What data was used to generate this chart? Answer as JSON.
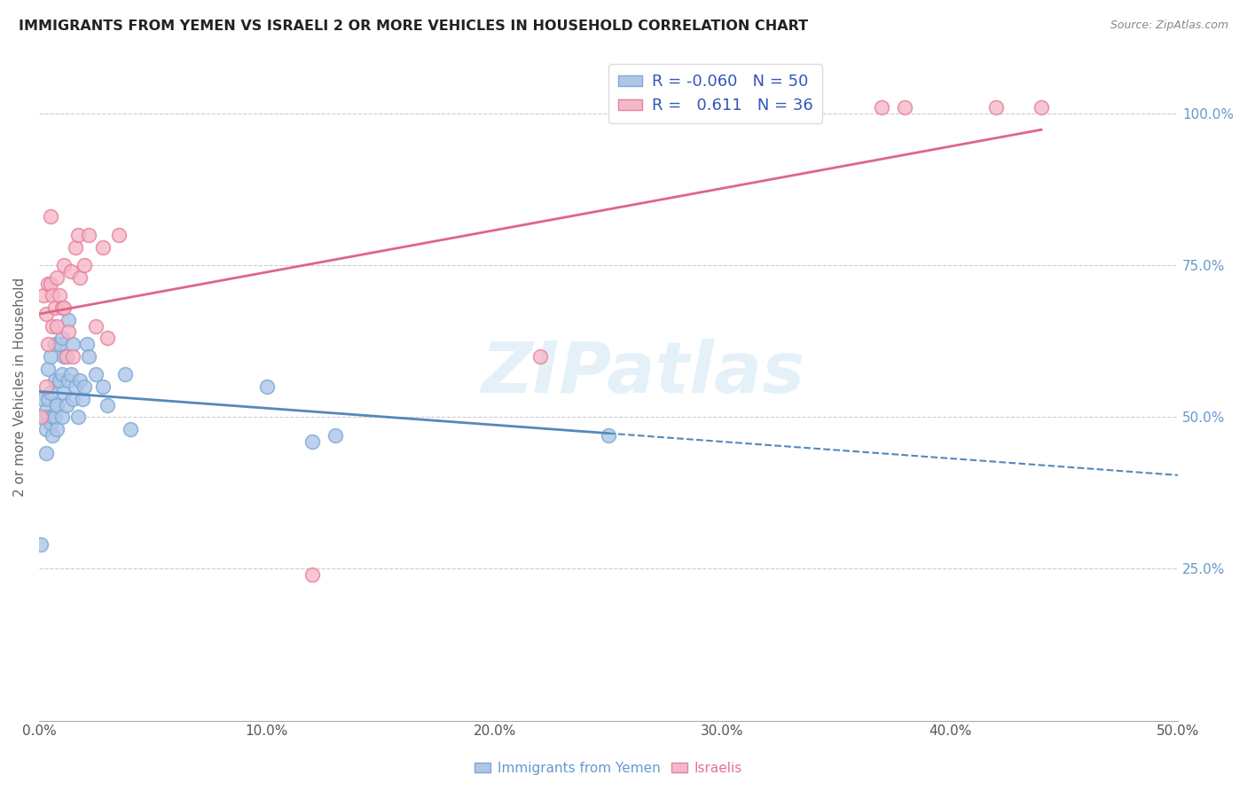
{
  "title": "IMMIGRANTS FROM YEMEN VS ISRAELI 2 OR MORE VEHICLES IN HOUSEHOLD CORRELATION CHART",
  "source": "Source: ZipAtlas.com",
  "ylabel": "2 or more Vehicles in Household",
  "xlim": [
    0.0,
    0.5
  ],
  "ylim": [
    0.0,
    1.1
  ],
  "x_tick_labels": [
    "0.0%",
    "10.0%",
    "20.0%",
    "30.0%",
    "40.0%",
    "50.0%"
  ],
  "x_tick_vals": [
    0.0,
    0.1,
    0.2,
    0.3,
    0.4,
    0.5
  ],
  "y_tick_labels": [
    "25.0%",
    "50.0%",
    "75.0%",
    "100.0%"
  ],
  "y_tick_vals": [
    0.25,
    0.5,
    0.75,
    1.0
  ],
  "blue_R": "-0.060",
  "blue_N": "50",
  "pink_R": "0.611",
  "pink_N": "36",
  "blue_color": "#aec6e8",
  "pink_color": "#f4b8c8",
  "blue_edge_color": "#7baad4",
  "pink_edge_color": "#e8809a",
  "blue_line_color": "#5588bb",
  "pink_line_color": "#dd6688",
  "watermark": "ZIPatlas",
  "blue_scatter_x": [
    0.001,
    0.002,
    0.002,
    0.003,
    0.003,
    0.003,
    0.004,
    0.004,
    0.004,
    0.005,
    0.005,
    0.005,
    0.006,
    0.006,
    0.007,
    0.007,
    0.007,
    0.008,
    0.008,
    0.008,
    0.009,
    0.009,
    0.01,
    0.01,
    0.01,
    0.011,
    0.011,
    0.012,
    0.012,
    0.013,
    0.013,
    0.014,
    0.015,
    0.015,
    0.016,
    0.017,
    0.018,
    0.019,
    0.02,
    0.021,
    0.022,
    0.025,
    0.028,
    0.03,
    0.038,
    0.04,
    0.1,
    0.12,
    0.13,
    0.25
  ],
  "blue_scatter_y": [
    0.29,
    0.5,
    0.53,
    0.48,
    0.44,
    0.51,
    0.5,
    0.53,
    0.58,
    0.49,
    0.54,
    0.6,
    0.47,
    0.5,
    0.5,
    0.56,
    0.62,
    0.52,
    0.48,
    0.52,
    0.56,
    0.62,
    0.5,
    0.57,
    0.63,
    0.54,
    0.6,
    0.52,
    0.6,
    0.56,
    0.66,
    0.57,
    0.53,
    0.62,
    0.55,
    0.5,
    0.56,
    0.53,
    0.55,
    0.62,
    0.6,
    0.57,
    0.55,
    0.52,
    0.57,
    0.48,
    0.55,
    0.46,
    0.47,
    0.47
  ],
  "pink_scatter_x": [
    0.001,
    0.002,
    0.003,
    0.003,
    0.004,
    0.004,
    0.005,
    0.005,
    0.006,
    0.006,
    0.007,
    0.008,
    0.008,
    0.009,
    0.01,
    0.011,
    0.011,
    0.012,
    0.013,
    0.014,
    0.015,
    0.016,
    0.017,
    0.018,
    0.02,
    0.022,
    0.025,
    0.028,
    0.03,
    0.035,
    0.12,
    0.22,
    0.37,
    0.38,
    0.42,
    0.44
  ],
  "pink_scatter_y": [
    0.5,
    0.7,
    0.67,
    0.55,
    0.62,
    0.72,
    0.72,
    0.83,
    0.65,
    0.7,
    0.68,
    0.73,
    0.65,
    0.7,
    0.68,
    0.68,
    0.75,
    0.6,
    0.64,
    0.74,
    0.6,
    0.78,
    0.8,
    0.73,
    0.75,
    0.8,
    0.65,
    0.78,
    0.63,
    0.8,
    0.24,
    0.6,
    1.01,
    1.01,
    1.01,
    1.01
  ]
}
